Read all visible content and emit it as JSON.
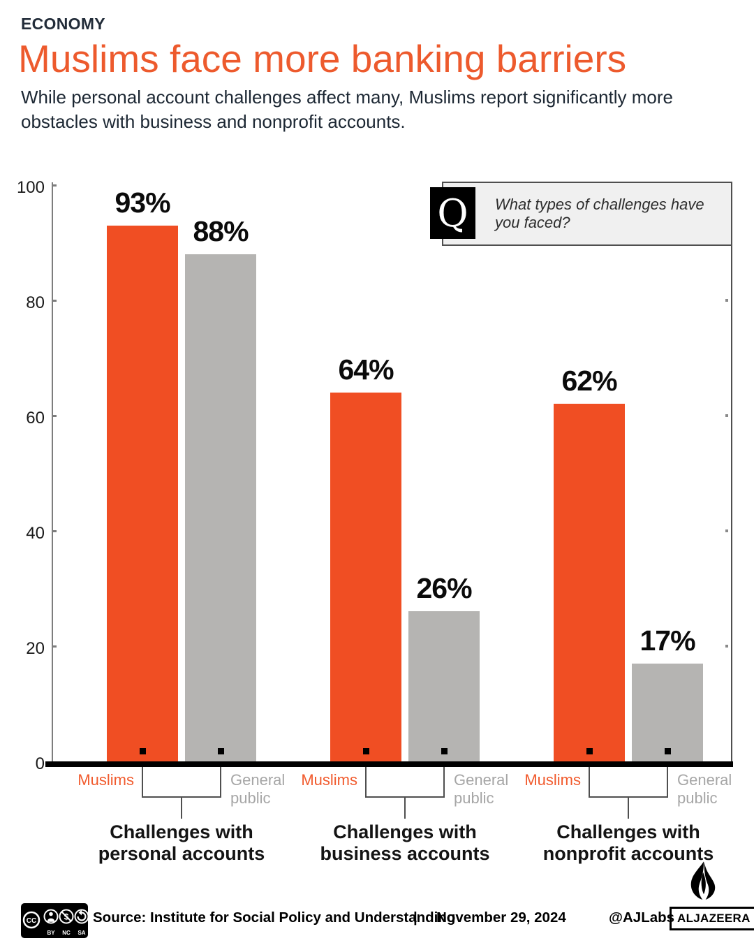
{
  "header": {
    "kicker": "ECONOMY",
    "title": "Muslims face more banking barriers",
    "subtitle": "While personal account challenges affect many, Muslims report significantly more obstacles with business and nonprofit accounts."
  },
  "question": {
    "letter": "Q",
    "text": "What types of challenges have you faced?"
  },
  "chart_data": {
    "type": "bar",
    "categories": [
      "Challenges with personal accounts",
      "Challenges with business accounts",
      "Challenges with nonprofit accounts"
    ],
    "series": [
      {
        "name": "Muslims",
        "color": "#f04e23",
        "values": [
          93,
          64,
          62
        ]
      },
      {
        "name": "General public",
        "color": "#b5b4b2",
        "values": [
          88,
          26,
          17
        ]
      }
    ],
    "value_suffix": "%",
    "ylim": [
      0,
      100
    ],
    "yticks": [
      0,
      20,
      40,
      60,
      80,
      100
    ],
    "grid": false,
    "legend_position": "below-each-bar"
  },
  "colors": {
    "accent_orange": "#f04e23",
    "bar_gray": "#b5b4b2",
    "title_orange": "#ed5a2d",
    "text_dark": "#1c2733",
    "label_gray": "#a6a6a6"
  },
  "footer": {
    "license_badges": [
      "CC",
      "BY",
      "NC",
      "SA"
    ],
    "source_label": "Source:",
    "source": "Institute for Social Policy and Understanding",
    "separator": "|",
    "date": "November 29, 2024",
    "credit": "@AJLabs",
    "brand": "ALJAZEERA"
  }
}
